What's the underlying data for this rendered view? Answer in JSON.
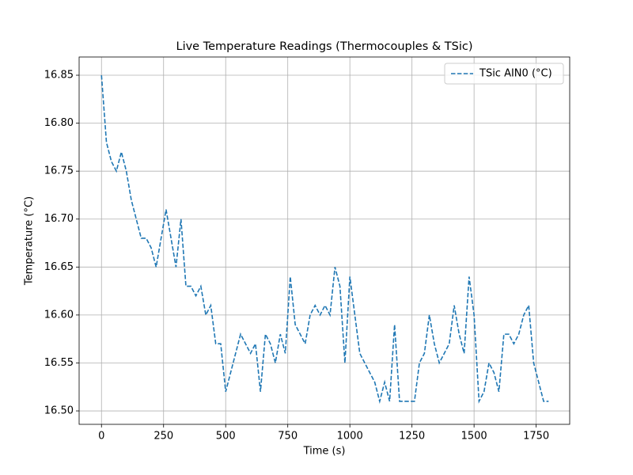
{
  "chart_data": {
    "type": "line",
    "title": "Live Temperature Readings (Thermocouples & TSic)",
    "xlabel": "Time (s)",
    "ylabel": "Temperature (°C)",
    "x": [
      0,
      20,
      40,
      60,
      80,
      100,
      120,
      140,
      160,
      180,
      200,
      220,
      240,
      260,
      280,
      300,
      320,
      340,
      360,
      380,
      400,
      420,
      440,
      460,
      480,
      500,
      520,
      540,
      560,
      580,
      600,
      620,
      640,
      660,
      680,
      700,
      720,
      740,
      760,
      780,
      800,
      820,
      840,
      860,
      880,
      900,
      920,
      940,
      960,
      980,
      1000,
      1020,
      1040,
      1060,
      1080,
      1100,
      1120,
      1140,
      1160,
      1180,
      1200,
      1220,
      1240,
      1260,
      1280,
      1300,
      1320,
      1340,
      1360,
      1380,
      1400,
      1420,
      1440,
      1460,
      1480,
      1500,
      1520,
      1540,
      1560,
      1580,
      1600,
      1620,
      1640,
      1660,
      1680,
      1700,
      1720,
      1740,
      1760,
      1780,
      1800
    ],
    "series": [
      {
        "name": "TSic AIN0 (°C)",
        "color": "#1f77b4",
        "values": [
          16.85,
          16.78,
          16.76,
          16.75,
          16.77,
          16.75,
          16.72,
          16.7,
          16.68,
          16.68,
          16.67,
          16.65,
          16.68,
          16.71,
          16.68,
          16.65,
          16.7,
          16.63,
          16.63,
          16.62,
          16.63,
          16.6,
          16.61,
          16.57,
          16.57,
          16.52,
          16.54,
          16.56,
          16.58,
          16.57,
          16.56,
          16.57,
          16.52,
          16.58,
          16.57,
          16.55,
          16.58,
          16.56,
          16.64,
          16.59,
          16.58,
          16.57,
          16.6,
          16.61,
          16.6,
          16.61,
          16.6,
          16.65,
          16.63,
          16.55,
          16.64,
          16.6,
          16.56,
          16.55,
          16.54,
          16.53,
          16.51,
          16.53,
          16.51,
          16.59,
          16.51,
          16.51,
          16.51,
          16.51,
          16.55,
          16.56,
          16.6,
          16.57,
          16.55,
          16.56,
          16.57,
          16.61,
          16.58,
          16.56,
          16.64,
          16.6,
          16.51,
          16.52,
          16.55,
          16.54,
          16.52,
          16.58,
          16.58,
          16.57,
          16.58,
          16.6,
          16.61,
          16.55,
          16.53,
          16.51,
          16.51
        ]
      }
    ],
    "xlim": [
      -90,
      1885
    ],
    "ylim": [
      16.486,
      16.869
    ],
    "xticks": [
      0,
      250,
      500,
      750,
      1000,
      1250,
      1500,
      1750
    ],
    "yticks": [
      {
        "value": 16.5,
        "label": "16.50"
      },
      {
        "value": 16.55,
        "label": "16.55"
      },
      {
        "value": 16.6,
        "label": "16.60"
      },
      {
        "value": 16.65,
        "label": "16.65"
      },
      {
        "value": 16.7,
        "label": "16.70"
      },
      {
        "value": 16.75,
        "label": "16.75"
      },
      {
        "value": 16.8,
        "label": "16.80"
      },
      {
        "value": 16.85,
        "label": "16.85"
      }
    ],
    "grid": true,
    "legend": "upper right",
    "linestyle": "dashed"
  }
}
